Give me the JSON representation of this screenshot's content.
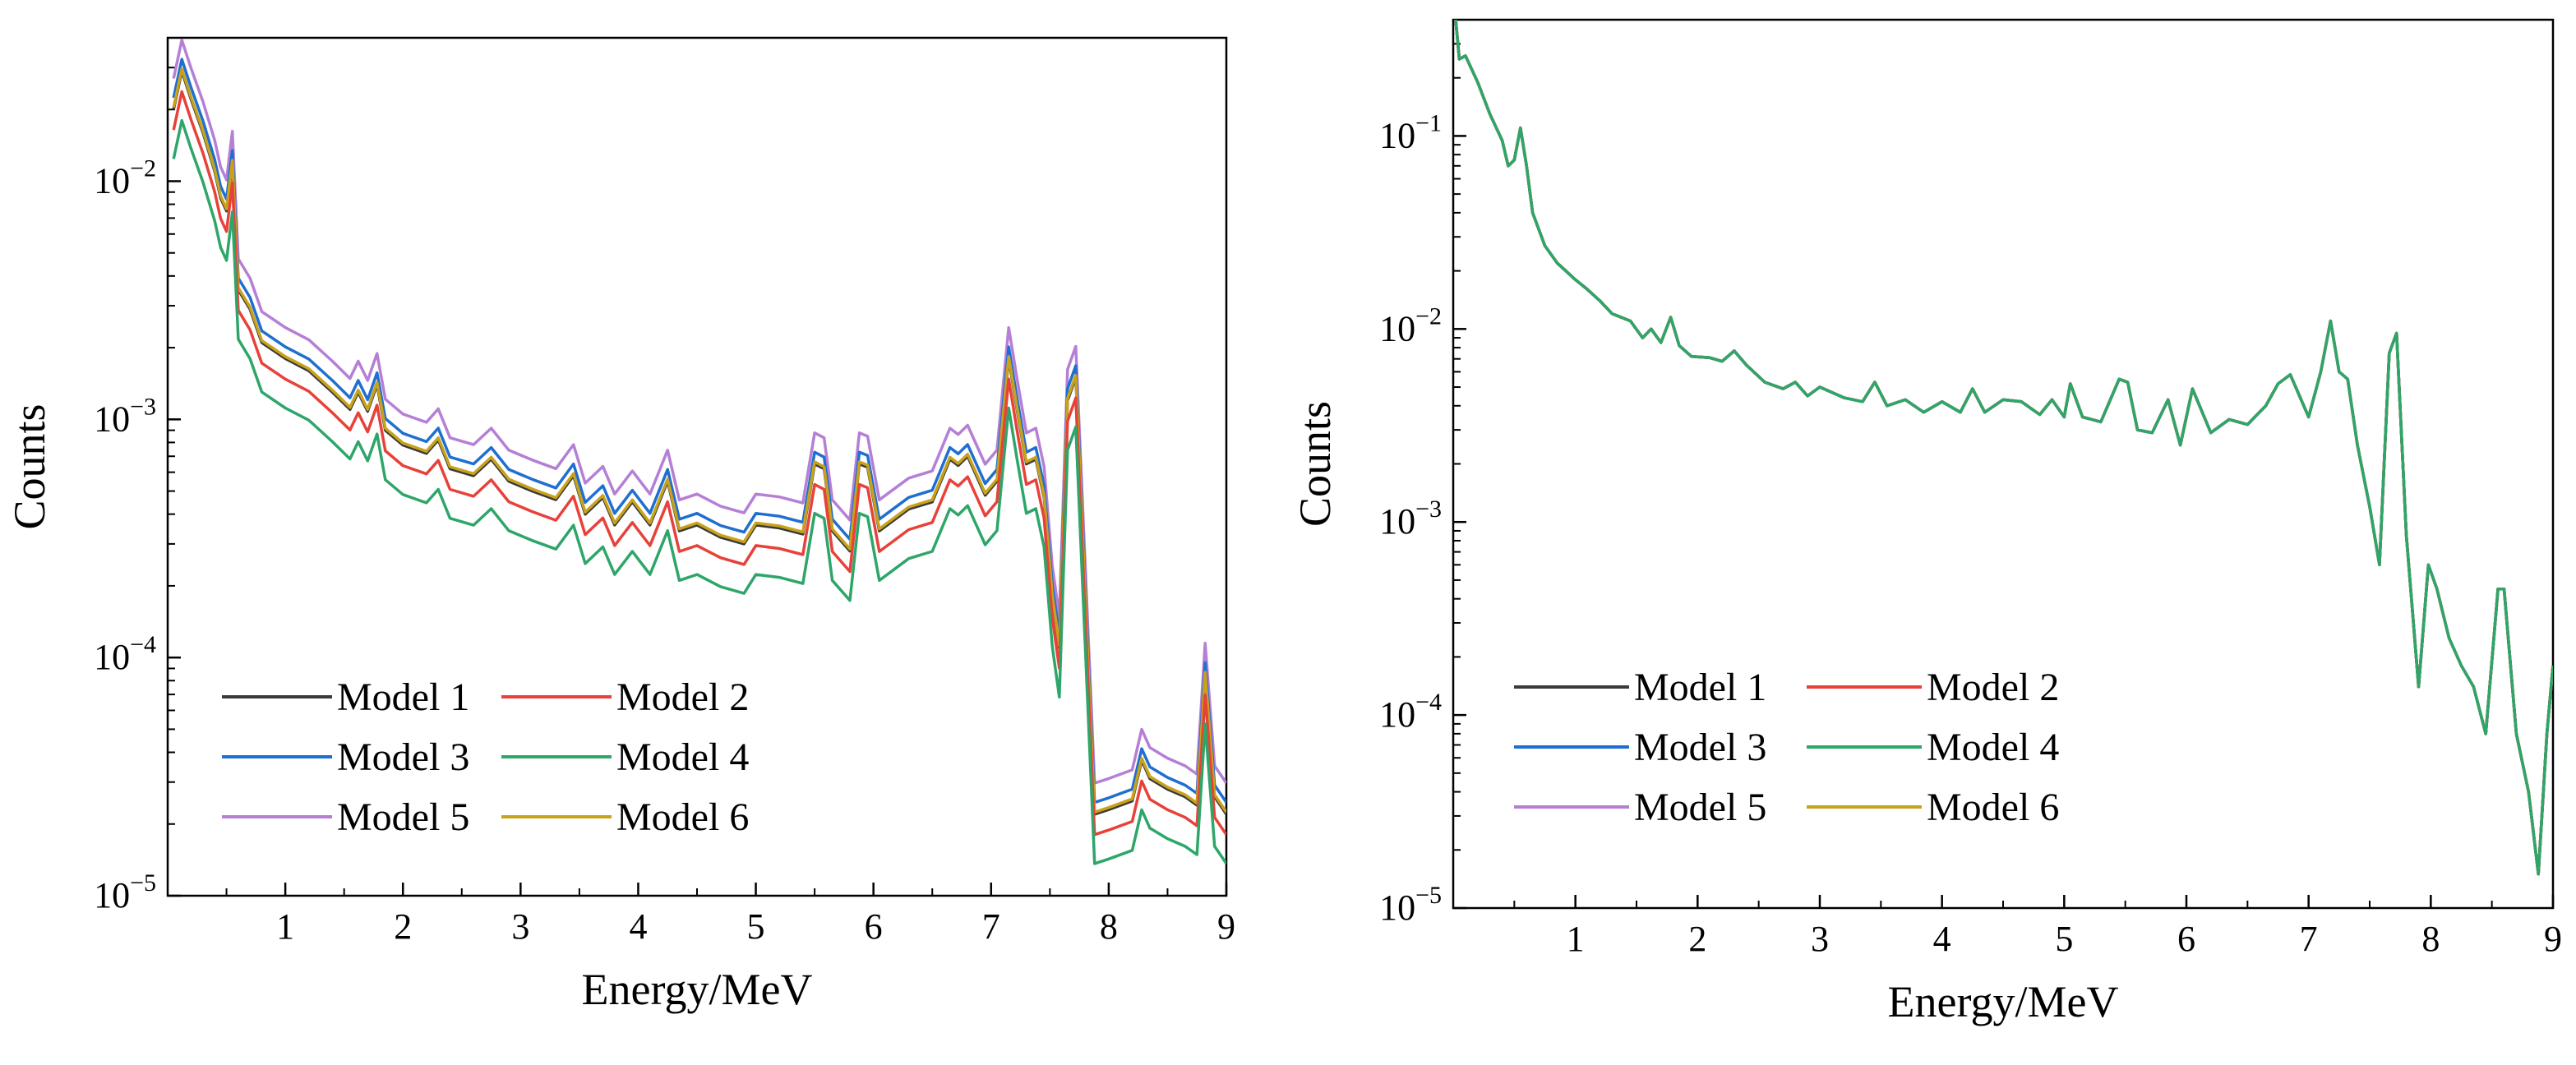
{
  "colors": {
    "model1": "#3a3a3a",
    "model2": "#e8413a",
    "model3": "#1f6fd1",
    "model4": "#2ea66a",
    "model5": "#b57fd6",
    "model6": "#c9a21c"
  },
  "chart_data": [
    {
      "type": "line",
      "yscale": "log",
      "xlabel": "Energy/MeV",
      "ylabel": "Counts",
      "xlim": [
        0,
        9
      ],
      "ylim": [
        1e-05,
        0.04
      ],
      "xticks": [
        "1",
        "2",
        "3",
        "4",
        "5",
        "6",
        "7",
        "8",
        "9"
      ],
      "ytick_base": [
        "10",
        "10",
        "10",
        "10"
      ],
      "ytick_exponents": [
        "−5",
        "−4",
        "−3",
        "−2"
      ],
      "ytick_values": [
        1e-05,
        0.0001,
        0.001,
        0.01
      ],
      "legend": {
        "placement": "lower-left",
        "labels": [
          "Model 1",
          "Model 2",
          "Model 3",
          "Model 4",
          "Model 5",
          "Model 6"
        ]
      },
      "series_scale": [
        1.0,
        0.82,
        1.12,
        0.62,
        1.35,
        1.02
      ],
      "base_spectrum": {
        "x": [
          0.05,
          0.12,
          0.2,
          0.3,
          0.4,
          0.45,
          0.5,
          0.55,
          0.6,
          0.7,
          0.8,
          1.0,
          1.2,
          1.4,
          1.55,
          1.62,
          1.7,
          1.78,
          1.85,
          2.0,
          2.2,
          2.3,
          2.4,
          2.6,
          2.75,
          2.9,
          3.1,
          3.3,
          3.45,
          3.55,
          3.7,
          3.8,
          3.95,
          4.1,
          4.25,
          4.35,
          4.5,
          4.7,
          4.9,
          5.0,
          5.2,
          5.4,
          5.5,
          5.58,
          5.65,
          5.8,
          5.88,
          5.95,
          6.05,
          6.15,
          6.3,
          6.5,
          6.65,
          6.72,
          6.8,
          6.95,
          7.05,
          7.15,
          7.22,
          7.3,
          7.38,
          7.45,
          7.52,
          7.58,
          7.65,
          7.72,
          7.8,
          7.88,
          8.0,
          8.2,
          8.28,
          8.35,
          8.5,
          8.65,
          8.75,
          8.82,
          8.9,
          9.0
        ],
        "y": [
          0.02,
          0.029,
          0.022,
          0.016,
          0.011,
          0.0085,
          0.0075,
          0.012,
          0.0035,
          0.0029,
          0.0021,
          0.0018,
          0.0016,
          0.0013,
          0.0011,
          0.0013,
          0.00108,
          0.0014,
          0.0009,
          0.00078,
          0.00072,
          0.00082,
          0.00062,
          0.00058,
          0.00068,
          0.00055,
          0.0005,
          0.00046,
          0.00058,
          0.0004,
          0.00047,
          0.00036,
          0.00045,
          0.00036,
          0.00055,
          0.00034,
          0.00036,
          0.00032,
          0.0003,
          0.00036,
          0.00035,
          0.00033,
          0.00065,
          0.00062,
          0.00034,
          0.00028,
          0.00065,
          0.00063,
          0.00034,
          0.00037,
          0.00042,
          0.00045,
          0.00068,
          0.00064,
          0.0007,
          0.00048,
          0.00055,
          0.0018,
          0.0011,
          0.00065,
          0.00068,
          0.00047,
          0.00018,
          0.00011,
          0.0012,
          0.0015,
          0.00018,
          2.2e-05,
          2.3e-05,
          2.5e-05,
          3.7e-05,
          3.1e-05,
          2.8e-05,
          2.6e-05,
          2.4e-05,
          8.5e-05,
          2.6e-05,
          2.2e-05
        ]
      }
    },
    {
      "type": "line",
      "yscale": "log",
      "xlabel": "Energy/MeV",
      "ylabel": "Counts",
      "xlim": [
        0,
        9
      ],
      "ylim": [
        1e-05,
        0.4
      ],
      "xticks": [
        "1",
        "2",
        "3",
        "4",
        "5",
        "6",
        "7",
        "8",
        "9"
      ],
      "ytick_base": [
        "10",
        "10",
        "10",
        "10",
        "10"
      ],
      "ytick_exponents": [
        "−5",
        "−4",
        "−3",
        "−2",
        "−1"
      ],
      "ytick_values": [
        1e-05,
        0.0001,
        0.001,
        0.01,
        0.1
      ],
      "legend": {
        "placement": "lower-left",
        "labels": [
          "Model 1",
          "Model 2",
          "Model 3",
          "Model 4",
          "Model 5",
          "Model 6"
        ]
      },
      "series_scale": [
        1.0,
        1.0,
        1.0,
        1.0,
        1.0,
        1.0
      ],
      "base_spectrum": {
        "x": [
          0.02,
          0.05,
          0.1,
          0.2,
          0.3,
          0.4,
          0.45,
          0.5,
          0.55,
          0.6,
          0.65,
          0.75,
          0.85,
          1.0,
          1.1,
          1.2,
          1.3,
          1.45,
          1.55,
          1.62,
          1.7,
          1.78,
          1.85,
          1.95,
          2.1,
          2.2,
          2.3,
          2.4,
          2.55,
          2.7,
          2.8,
          2.9,
          3.0,
          3.2,
          3.35,
          3.45,
          3.55,
          3.7,
          3.85,
          4.0,
          4.15,
          4.25,
          4.35,
          4.5,
          4.65,
          4.8,
          4.9,
          5.0,
          5.05,
          5.15,
          5.3,
          5.45,
          5.52,
          5.6,
          5.72,
          5.85,
          5.95,
          6.05,
          6.2,
          6.35,
          6.5,
          6.65,
          6.75,
          6.85,
          7.0,
          7.1,
          7.18,
          7.25,
          7.32,
          7.4,
          7.5,
          7.58,
          7.66,
          7.72,
          7.8,
          7.9,
          7.98,
          8.05,
          8.15,
          8.25,
          8.35,
          8.45,
          8.55,
          8.6,
          8.7,
          8.8,
          8.88,
          8.95,
          9.0
        ],
        "y": [
          0.4,
          0.25,
          0.26,
          0.19,
          0.13,
          0.095,
          0.07,
          0.075,
          0.11,
          0.07,
          0.04,
          0.027,
          0.022,
          0.018,
          0.016,
          0.014,
          0.012,
          0.011,
          0.009,
          0.01,
          0.0085,
          0.0115,
          0.0082,
          0.0072,
          0.0071,
          0.0068,
          0.0077,
          0.0065,
          0.0053,
          0.0049,
          0.0053,
          0.0045,
          0.005,
          0.0044,
          0.0042,
          0.0053,
          0.004,
          0.0043,
          0.0037,
          0.0042,
          0.0037,
          0.0049,
          0.0037,
          0.0043,
          0.0042,
          0.0036,
          0.0043,
          0.0035,
          0.0052,
          0.0035,
          0.0033,
          0.0055,
          0.0053,
          0.003,
          0.0029,
          0.0043,
          0.0025,
          0.0049,
          0.0029,
          0.0034,
          0.0032,
          0.004,
          0.0052,
          0.0058,
          0.0035,
          0.006,
          0.011,
          0.006,
          0.0055,
          0.0025,
          0.0012,
          0.0006,
          0.0075,
          0.0095,
          0.00085,
          0.00014,
          0.0006,
          0.00045,
          0.00025,
          0.00018,
          0.00014,
          8e-05,
          0.00045,
          0.00045,
          8e-05,
          4e-05,
          1.5e-05,
          8e-05,
          0.00018
        ]
      }
    }
  ]
}
